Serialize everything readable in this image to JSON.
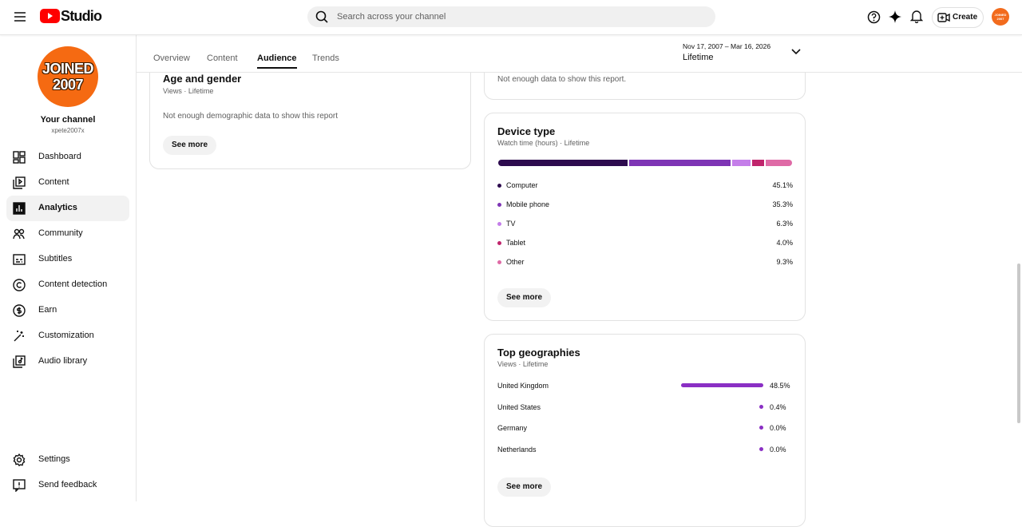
{
  "header": {
    "logo": "Studio",
    "search_placeholder": "Search across your channel",
    "create": "Create"
  },
  "sidebar": {
    "avatar_text": [
      "JOINED",
      "2007"
    ],
    "channel_name": "Your channel",
    "handle": "xpete2007x",
    "nav": [
      "Dashboard",
      "Content",
      "Analytics",
      "Community",
      "Subtitles",
      "Content detection",
      "Earn",
      "Customization",
      "Audio library"
    ],
    "active": 2,
    "footer": [
      "Settings",
      "Send feedback"
    ]
  },
  "tabs": {
    "items": [
      "Overview",
      "Content",
      "Audience",
      "Trends"
    ],
    "active": 2
  },
  "date_range": {
    "range": "Nov 17, 2007 – Mar 16, 2026",
    "label": "Lifetime"
  },
  "cards": {
    "previous_card": {
      "message": "Not enough data to show this report."
    },
    "age_gender": {
      "title": "Age and gender",
      "subtitle": "Views · Lifetime",
      "message": "Not enough demographic data to show this report",
      "button": "See more"
    },
    "device_type": {
      "title": "Device type",
      "subtitle": "Watch time (hours) · Lifetime",
      "button": "See more",
      "items": [
        {
          "name": "Computer",
          "value": 45.1,
          "value_label": "45.1%",
          "color": "#2d0b4e"
        },
        {
          "name": "Mobile phone",
          "value": 35.3,
          "value_label": "35.3%",
          "color": "#7e35b5"
        },
        {
          "name": "TV",
          "value": 6.3,
          "value_label": "6.3%",
          "color": "#c47ee9"
        },
        {
          "name": "Tablet",
          "value": 4.0,
          "value_label": "4.0%",
          "color": "#c0246c"
        },
        {
          "name": "Other",
          "value": 9.3,
          "value_label": "9.3%",
          "color": "#df6aa6"
        }
      ]
    },
    "top_geographies": {
      "title": "Top geographies",
      "subtitle": "Views · Lifetime",
      "button": "See more",
      "color": "#8a2fc4",
      "items": [
        {
          "name": "United Kingdom",
          "value": 48.5,
          "value_label": "48.5%"
        },
        {
          "name": "United States",
          "value": 0.4,
          "value_label": "0.4%"
        },
        {
          "name": "Germany",
          "value": 0,
          "value_label": "0.0%"
        },
        {
          "name": "Netherlands",
          "value": 0,
          "value_label": "0.0%"
        }
      ]
    }
  }
}
